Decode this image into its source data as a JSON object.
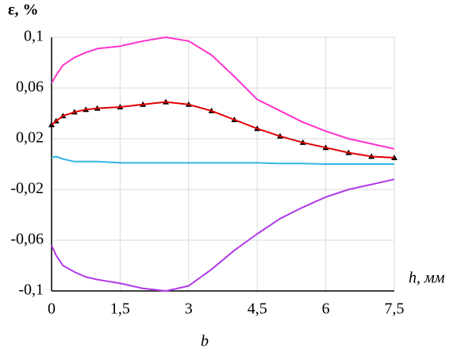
{
  "chart_data": {
    "type": "line",
    "y_label": "ε, %",
    "x_label": "h, мм",
    "caption": "b",
    "x": [
      0,
      0.1,
      0.25,
      0.5,
      0.75,
      1,
      1.5,
      2,
      2.5,
      3,
      3.5,
      4,
      4.5,
      5,
      5.5,
      6,
      6.5,
      7,
      7.5
    ],
    "series": [
      {
        "color": "#ff33cc",
        "values": [
          0.064,
          0.07,
          0.078,
          0.084,
          0.088,
          0.091,
          0.093,
          0.097,
          0.1,
          0.097,
          0.086,
          0.069,
          0.051,
          0.042,
          0.033,
          0.026,
          0.02,
          0.016,
          0.012
        ]
      },
      {
        "color": "#000000",
        "marker": "triangle",
        "values": [
          0.031,
          0.034,
          0.038,
          0.041,
          0.043,
          0.044,
          0.045,
          0.047,
          0.049,
          0.047,
          0.042,
          0.035,
          0.028,
          0.022,
          0.017,
          0.013,
          0.009,
          0.006,
          0.005
        ]
      },
      {
        "color": "#e00000",
        "values": [
          0.031,
          0.034,
          0.038,
          0.041,
          0.043,
          0.044,
          0.045,
          0.047,
          0.049,
          0.047,
          0.042,
          0.035,
          0.028,
          0.022,
          0.017,
          0.013,
          0.009,
          0.006,
          0.005
        ]
      },
      {
        "color": "#33b5e5",
        "values": [
          0.005,
          0.006,
          0.004,
          0.002,
          0.002,
          0.002,
          0.001,
          0.001,
          0.001,
          0.001,
          0.001,
          0.001,
          0.001,
          0.0005,
          0.0005,
          0,
          0,
          0,
          0
        ]
      },
      {
        "color": "#b03ae8",
        "values": [
          -0.064,
          -0.072,
          -0.08,
          -0.085,
          -0.089,
          -0.091,
          -0.094,
          -0.098,
          -0.1,
          -0.096,
          -0.083,
          -0.068,
          -0.055,
          -0.043,
          -0.034,
          -0.026,
          -0.02,
          -0.016,
          -0.012
        ]
      }
    ],
    "xlim": [
      0,
      7.5
    ],
    "ylim": [
      -0.1,
      0.1
    ],
    "xticks": [
      0,
      {
        "value": 1.5,
        "label": "1,5"
      },
      3,
      {
        "value": 4.5,
        "label": "4,5"
      },
      6,
      {
        "value": 7.5,
        "label": "7,5"
      }
    ],
    "yticks": [
      {
        "value": -0.1,
        "label": "-0,1"
      },
      {
        "value": -0.06,
        "label": "-0,06"
      },
      {
        "value": -0.02,
        "label": "-0,02"
      },
      {
        "value": 0.02,
        "label": "0,02"
      },
      {
        "value": 0.06,
        "label": "0,06"
      },
      {
        "value": 0.1,
        "label": "0,1"
      }
    ],
    "grid": true
  }
}
